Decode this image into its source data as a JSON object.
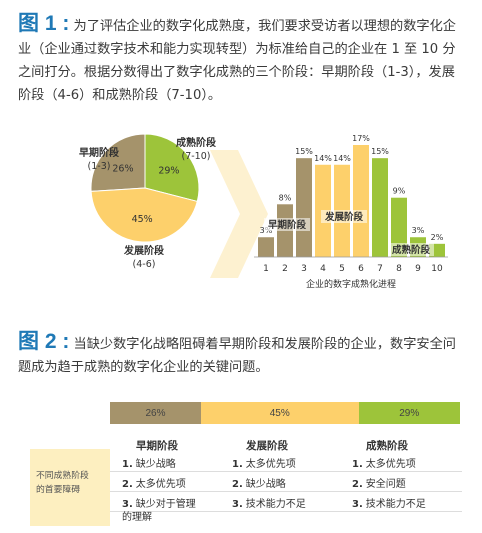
{
  "figure1": {
    "label": "图 1 :",
    "caption": "为了评估企业的数字化成熟度，我们要求受访者以理想的数字化企业（企业通过数字技术和能力实现转型）为标准给自己的企业在 1 至 10 分之间打分。根据分数得出了数字化成熟的三个阶段：早期阶段（1-3），发展阶段（4-6）和成熟阶段（7-10）。"
  },
  "figure2": {
    "label": "图 2 :",
    "caption": "当缺少数字化战略阻碍着早期阶段和发展阶段的企业，数字安全问题成为趋于成熟的数字化企业的关键问题。"
  },
  "colors": {
    "early": "#a5936b",
    "developing": "#fdd06b",
    "mature": "#9dc43a",
    "accent": "#1f79b6"
  },
  "chart_data": [
    {
      "type": "pie",
      "slices": [
        {
          "name": "早期阶段",
          "range": "(1-3)",
          "value": 26,
          "label": "26%",
          "color": "#a5936b"
        },
        {
          "name": "成熟阶段",
          "range": "(7-10)",
          "value": 29,
          "label": "29%",
          "color": "#9dc43a"
        },
        {
          "name": "发展阶段",
          "range": "(4-6)",
          "value": 45,
          "label": "45%",
          "color": "#fdd06b"
        }
      ]
    },
    {
      "type": "bar",
      "categories": [
        "1",
        "2",
        "3",
        "4",
        "5",
        "6",
        "7",
        "8",
        "9",
        "10"
      ],
      "values": [
        3,
        8,
        15,
        14,
        14,
        17,
        15,
        9,
        3,
        2
      ],
      "value_labels": [
        "3%",
        "8%",
        "15%",
        "14%",
        "14%",
        "17%",
        "15%",
        "9%",
        "3%",
        "2%"
      ],
      "colors": [
        "#a5936b",
        "#a5936b",
        "#a5936b",
        "#fdd06b",
        "#fdd06b",
        "#fdd06b",
        "#9dc43a",
        "#9dc43a",
        "#9dc43a",
        "#9dc43a"
      ],
      "xlabel": "企业的数字成熟化进程",
      "stage_labels": {
        "early": "早期阶段",
        "developing": "发展阶段",
        "mature": "成熟阶段"
      },
      "ylim": [
        0,
        17
      ]
    }
  ],
  "table": {
    "segments": [
      {
        "label": "26%",
        "value": 26,
        "color": "#a5936b"
      },
      {
        "label": "45%",
        "value": 45,
        "color": "#fdd06b"
      },
      {
        "label": "29%",
        "value": 29,
        "color": "#9dc43a"
      }
    ],
    "heads": [
      "早期阶段",
      "发展阶段",
      "成熟阶段"
    ],
    "side_label": "不同成熟阶段的首要障碍",
    "rows": [
      [
        {
          "num": "1.",
          "text": "缺少战略"
        },
        {
          "num": "1.",
          "text": "太多优先项"
        },
        {
          "num": "1.",
          "text": "太多优先项"
        }
      ],
      [
        {
          "num": "2.",
          "text": "太多优先项"
        },
        {
          "num": "2.",
          "text": "缺少战略"
        },
        {
          "num": "2.",
          "text": "安全问题"
        }
      ],
      [
        {
          "num": "3.",
          "text": "缺少对于管理的理解"
        },
        {
          "num": "3.",
          "text": "技术能力不足"
        },
        {
          "num": "3.",
          "text": "技术能力不足"
        }
      ]
    ]
  }
}
